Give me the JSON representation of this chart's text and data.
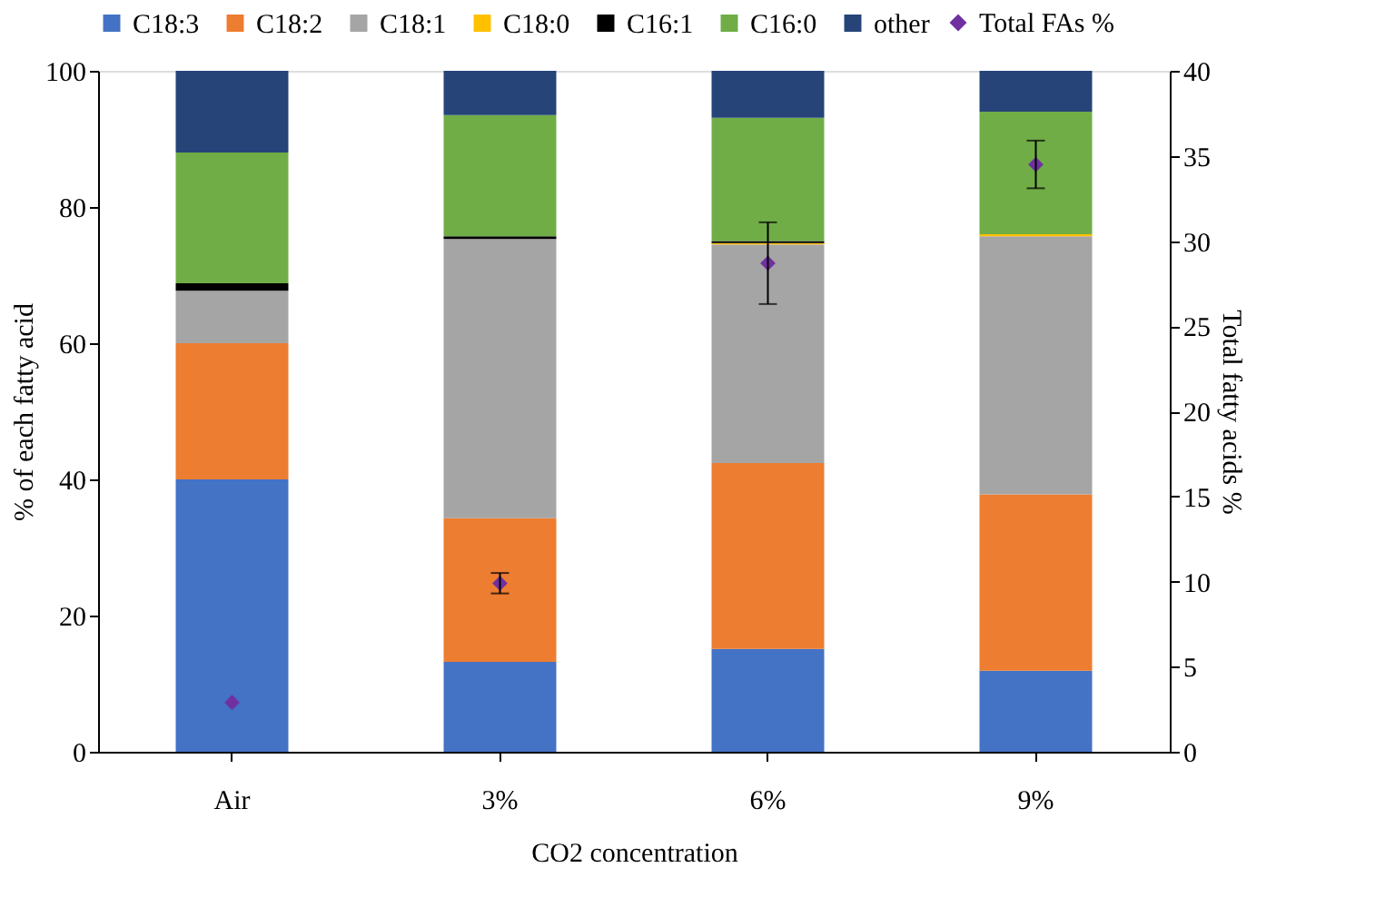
{
  "chart_data": {
    "type": "bar",
    "stacked": true,
    "xlabel": "CO2 concentration",
    "ylabel": "% of each fatty acid",
    "y2label": "Total fatty acids %",
    "categories": [
      "Air",
      "3%",
      "6%",
      "9%"
    ],
    "series": [
      {
        "name": "C18:3",
        "color": "#4472c4",
        "values": [
          40.0,
          13.2,
          15.1,
          11.9
        ]
      },
      {
        "name": "C18:2",
        "color": "#ed7d31",
        "values": [
          20.0,
          21.1,
          27.3,
          25.9
        ]
      },
      {
        "name": "C18:1",
        "color": "#a5a5a5",
        "values": [
          7.7,
          41.0,
          32.1,
          37.9
        ]
      },
      {
        "name": "C18:0",
        "color": "#ffc000",
        "values": [
          0,
          0,
          0.2,
          0.3
        ]
      },
      {
        "name": "C16:1",
        "color": "#000000",
        "values": [
          1.1,
          0.4,
          0.3,
          0
        ]
      },
      {
        "name": "C16:0",
        "color": "#70ad47",
        "values": [
          19.2,
          17.8,
          18.1,
          18.0
        ]
      },
      {
        "name": "other",
        "color": "#264478",
        "values": [
          12.0,
          6.5,
          6.9,
          6.0
        ]
      },
      {
        "name": "Total FAs %",
        "color": "#7030a0",
        "type": "scatter",
        "axis": "y2",
        "marker": "diamond",
        "values": [
          2.9,
          9.9,
          28.7,
          34.5
        ],
        "errors": [
          null,
          0.6,
          2.4,
          1.4
        ]
      }
    ],
    "ylim": [
      0,
      100
    ],
    "yticks": [
      0,
      20,
      40,
      60,
      80,
      100
    ],
    "y2lim": [
      0,
      40
    ],
    "y2ticks": [
      0,
      5,
      10,
      15,
      20,
      25,
      30,
      35,
      40
    ],
    "grid": false,
    "legend": "top"
  }
}
